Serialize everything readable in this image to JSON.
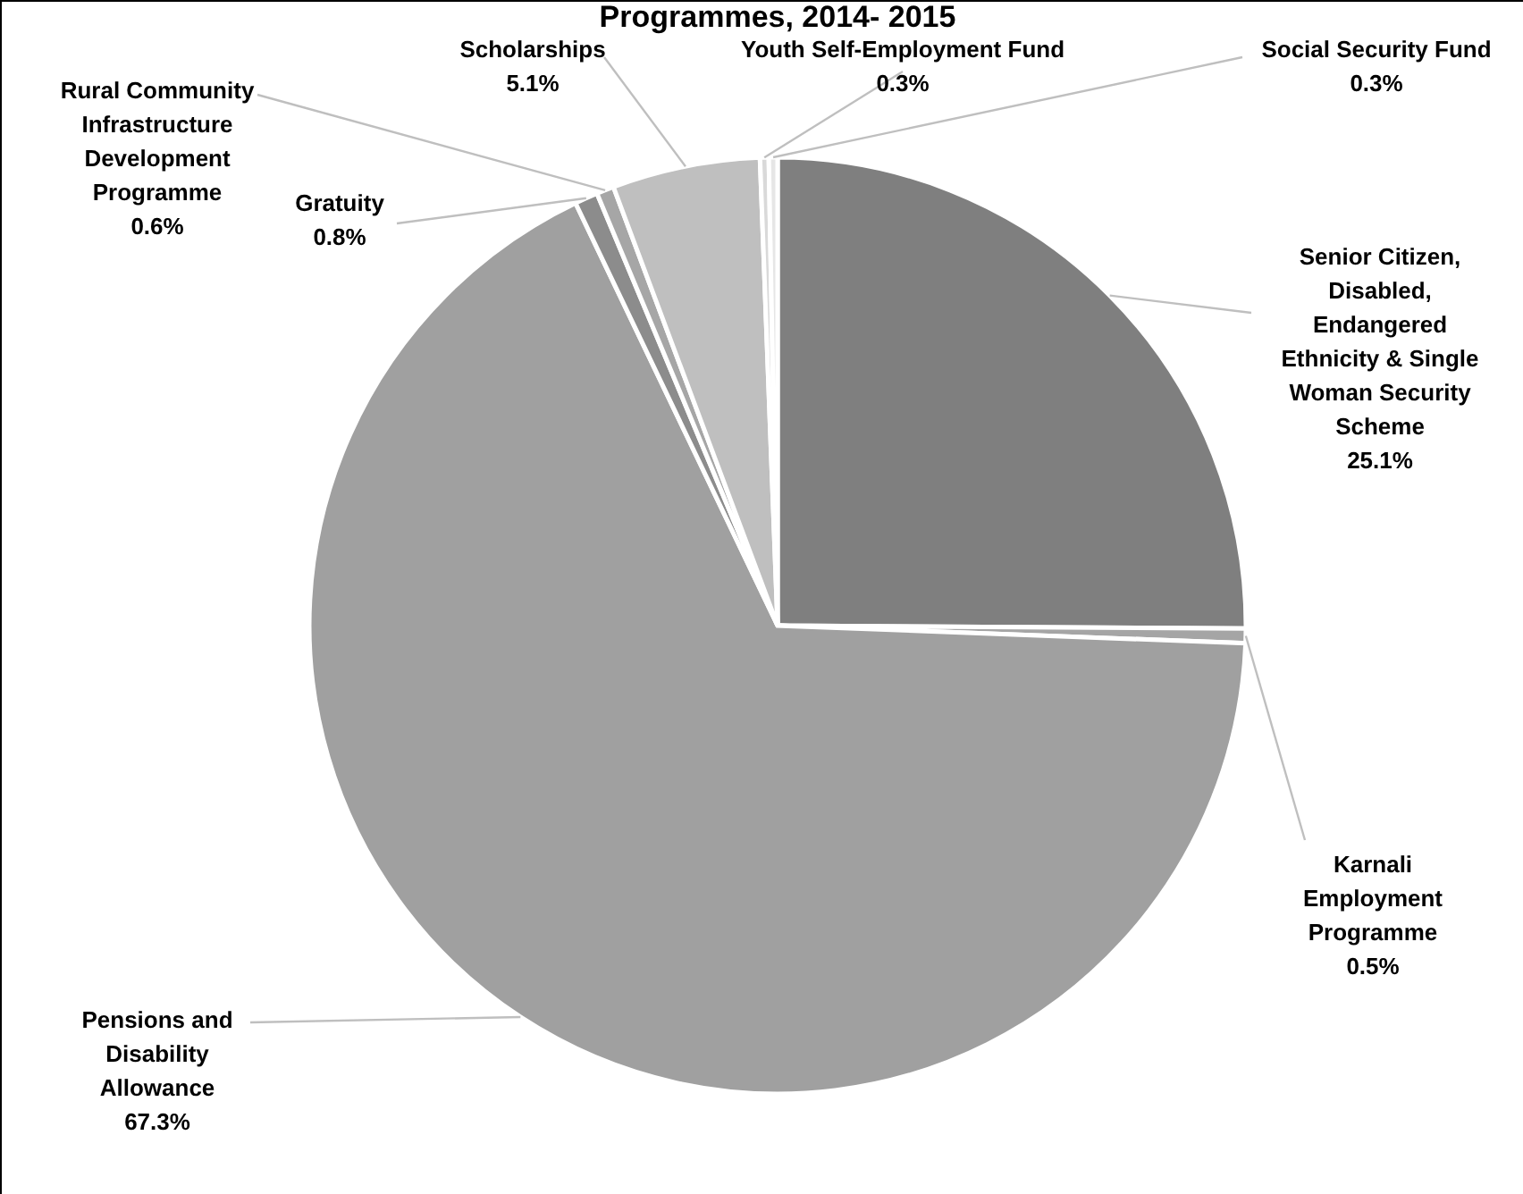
{
  "chart_data": {
    "type": "pie",
    "title": "Programmes, 2014- 2015",
    "categories": [
      "Senior Citizen, Disabled, Endangered Ethnicity & Single Woman Security Scheme",
      "Karnali Employment Programme",
      "Pensions and Disability Allowance",
      "Gratuity",
      "Rural Community Infrastructure Development Programme",
      "Scholarships",
      "Youth Self-Employment Fund",
      "Social Security Fund"
    ],
    "values": [
      25.1,
      0.5,
      67.3,
      0.8,
      0.6,
      5.1,
      0.3,
      0.3
    ],
    "colors": [
      "#7f7f7f",
      "#a5a5a5",
      "#a0a0a0",
      "#8c8c8c",
      "#a6a6a6",
      "#bfbfbf",
      "#d9d9d9",
      "#e6e6e6"
    ],
    "value_labels": [
      "25.1%",
      "0.5%",
      "67.3%",
      "0.8%",
      "0.6%",
      "5.1%",
      "0.3%",
      "0.3%"
    ]
  }
}
